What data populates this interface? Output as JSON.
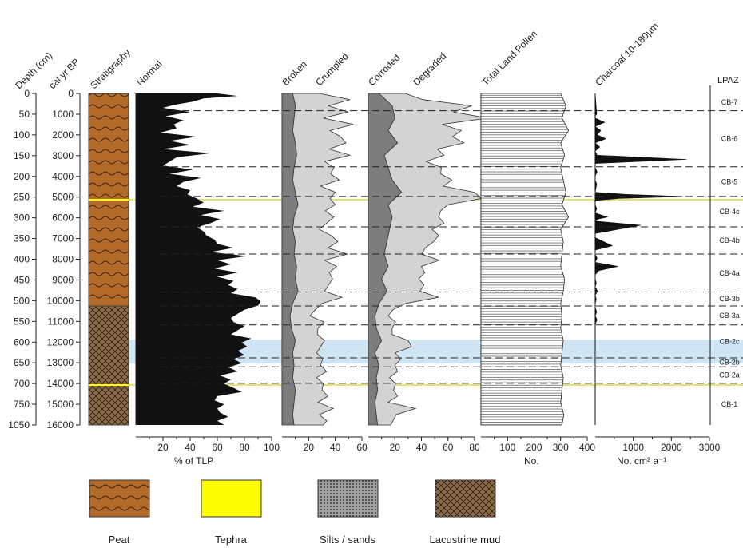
{
  "chart_data": {
    "type": "area",
    "headers": {
      "depth": "Depth (cm)",
      "age": "cal yr BP",
      "strat": "Stratigraphy",
      "normal": "Normal",
      "broken": "Broken",
      "crumpled": "Crumpled",
      "corroded": "Corroded",
      "degraded": "Degraded",
      "tlp": "Total Land Pollen",
      "charcoal": "Charcoal 10-180µm",
      "lpaz": "LPAZ"
    },
    "axis_labels": {
      "normal": "% of TLP",
      "tlp": "No.",
      "charcoal": "No. cm² a⁻¹"
    },
    "depth_ticks": [
      0,
      50,
      100,
      150,
      200,
      250,
      300,
      350,
      400,
      450,
      500,
      550,
      600,
      650,
      700,
      750,
      1050
    ],
    "age_ticks": [
      0,
      1000,
      2000,
      3000,
      4000,
      5000,
      6000,
      7000,
      8000,
      9000,
      10000,
      11000,
      12000,
      13000,
      14000,
      15000,
      16000
    ],
    "x_ticks": {
      "normal": [
        20,
        40,
        60,
        80,
        100
      ],
      "broken_crumpled": [
        20,
        40,
        60
      ],
      "corroded_degraded": [
        20,
        40,
        60,
        80
      ],
      "tlp": [
        100,
        200,
        300,
        400
      ],
      "charcoal": [
        1000,
        2000,
        3000
      ]
    },
    "series": [
      {
        "name": "Normal",
        "x_max": 100,
        "depth": [
          0,
          6,
          12,
          20,
          28,
          35,
          45,
          55,
          65,
          75,
          85,
          95,
          105,
          115,
          125,
          135,
          145,
          155,
          165,
          175,
          185,
          195,
          205,
          215,
          225,
          235,
          245,
          255,
          265,
          275,
          285,
          295,
          305,
          315,
          325,
          335,
          345,
          355,
          365,
          375,
          385,
          395,
          405,
          415,
          425,
          435,
          445,
          455,
          465,
          475,
          485,
          495,
          505,
          515,
          525,
          535,
          545,
          555,
          565,
          575,
          585,
          595,
          605,
          615,
          625,
          635,
          645,
          655,
          665,
          675,
          685,
          695,
          705,
          715,
          725,
          735,
          745,
          755,
          765,
          775,
          785,
          795,
          805
        ],
        "values": [
          60,
          75,
          50,
          42,
          28,
          20,
          40,
          22,
          35,
          28,
          30,
          18,
          45,
          25,
          40,
          20,
          55,
          30,
          25,
          20,
          42,
          25,
          48,
          35,
          30,
          40,
          38,
          45,
          50,
          42,
          65,
          48,
          62,
          55,
          45,
          50,
          52,
          58,
          60,
          72,
          55,
          82,
          60,
          70,
          58,
          75,
          60,
          72,
          68,
          75,
          70,
          88,
          92,
          90,
          80,
          75,
          70,
          72,
          80,
          75,
          70,
          85,
          78,
          82,
          75,
          80,
          72,
          78,
          68,
          75,
          62,
          70,
          65,
          72,
          78,
          60,
          58,
          65,
          60,
          62,
          68,
          60,
          65
        ]
      },
      {
        "name": "Broken",
        "x_max": 60,
        "depth": [
          0,
          30,
          60,
          90,
          120,
          150,
          180,
          210,
          240,
          270,
          300,
          330,
          360,
          390,
          420,
          450,
          480,
          510,
          540,
          570,
          600,
          630,
          660,
          690,
          720,
          750,
          780,
          805
        ],
        "values": [
          8,
          10,
          9,
          8,
          10,
          11,
          9,
          8,
          10,
          12,
          9,
          8,
          10,
          9,
          11,
          10,
          12,
          8,
          6,
          7,
          10,
          8,
          9,
          8,
          10,
          9,
          8,
          9
        ]
      },
      {
        "name": "Crumpled",
        "x_max": 60,
        "depth": [
          0,
          15,
          30,
          45,
          60,
          75,
          90,
          105,
          120,
          135,
          150,
          165,
          180,
          195,
          210,
          225,
          240,
          255,
          270,
          285,
          300,
          315,
          330,
          345,
          360,
          375,
          390,
          405,
          420,
          435,
          450,
          465,
          480,
          495,
          510,
          525,
          540,
          555,
          570,
          585,
          600,
          615,
          630,
          645,
          660,
          675,
          690,
          705,
          720,
          735,
          750,
          765,
          780,
          795,
          805
        ],
        "values": [
          20,
          42,
          25,
          40,
          22,
          45,
          28,
          35,
          38,
          25,
          40,
          22,
          30,
          28,
          35,
          20,
          30,
          25,
          28,
          22,
          30,
          25,
          20,
          28,
          32,
          25,
          40,
          22,
          30,
          25,
          28,
          24,
          20,
          35,
          22,
          18,
          15,
          25,
          20,
          18,
          22,
          20,
          18,
          22,
          20,
          25,
          18,
          22,
          20,
          25,
          18,
          30,
          20,
          25,
          22
        ]
      },
      {
        "name": "Corroded",
        "x_max": 80,
        "depth": [
          0,
          30,
          60,
          90,
          120,
          150,
          180,
          210,
          240,
          270,
          300,
          330,
          360,
          390,
          420,
          450,
          480,
          510,
          540,
          570,
          600,
          630,
          660,
          690,
          720,
          750,
          780,
          805
        ],
        "values": [
          8,
          18,
          20,
          15,
          22,
          12,
          15,
          18,
          25,
          15,
          18,
          16,
          14,
          12,
          15,
          10,
          14,
          8,
          5,
          6,
          10,
          5,
          8,
          6,
          7,
          5,
          6,
          7
        ]
      },
      {
        "name": "Degraded",
        "x_max": 80,
        "depth": [
          0,
          15,
          30,
          45,
          60,
          75,
          90,
          105,
          120,
          135,
          150,
          165,
          180,
          195,
          210,
          225,
          240,
          255,
          270,
          285,
          300,
          315,
          330,
          345,
          360,
          375,
          390,
          405,
          420,
          435,
          450,
          465,
          480,
          495,
          510,
          525,
          540,
          555,
          570,
          585,
          600,
          615,
          630,
          645,
          660,
          675,
          690,
          705,
          720,
          735,
          750,
          765,
          780,
          795,
          805
        ],
        "values": [
          20,
          28,
          60,
          45,
          70,
          38,
          55,
          45,
          50,
          35,
          45,
          30,
          40,
          38,
          45,
          35,
          55,
          65,
          45,
          38,
          35,
          40,
          32,
          38,
          35,
          30,
          28,
          40,
          25,
          30,
          28,
          30,
          25,
          42,
          20,
          12,
          10,
          15,
          12,
          10,
          20,
          25,
          15,
          18,
          12,
          15,
          10,
          14,
          12,
          16,
          10,
          30,
          15,
          12,
          10
        ]
      },
      {
        "name": "Total Land Pollen",
        "x_max": 400,
        "depth": [
          0,
          30,
          60,
          90,
          120,
          150,
          180,
          210,
          240,
          270,
          300,
          330,
          360,
          390,
          420,
          450,
          480,
          510,
          540,
          570,
          600,
          630,
          660,
          690,
          720,
          750,
          780,
          805
        ],
        "values": [
          300,
          320,
          305,
          330,
          300,
          315,
          300,
          310,
          320,
          305,
          330,
          300,
          310,
          305,
          300,
          315,
          310,
          300,
          305,
          300,
          310,
          305,
          300,
          310,
          305,
          300,
          312,
          305
        ]
      },
      {
        "name": "Charcoal 10-180µm",
        "x_max": 3000,
        "depth": [
          0,
          50,
          55,
          60,
          70,
          80,
          90,
          100,
          110,
          120,
          130,
          140,
          150,
          160,
          170,
          180,
          190,
          200,
          210,
          220,
          240,
          245,
          250,
          255,
          260,
          270,
          280,
          290,
          300,
          305,
          310,
          320,
          330,
          340,
          350,
          370,
          380,
          390,
          400,
          410,
          420,
          430,
          440,
          450,
          460,
          470,
          480,
          490,
          500,
          510,
          520,
          530,
          540,
          550,
          560,
          805
        ],
        "values": [
          0,
          40,
          0,
          0,
          250,
          0,
          150,
          50,
          280,
          0,
          120,
          0,
          50,
          2400,
          0,
          0,
          50,
          0,
          0,
          40,
          0,
          800,
          2300,
          600,
          0,
          0,
          40,
          0,
          320,
          80,
          0,
          1200,
          600,
          0,
          0,
          450,
          0,
          0,
          50,
          0,
          600,
          100,
          0,
          0,
          30,
          0,
          60,
          0,
          30,
          0,
          0,
          40,
          0,
          50,
          0,
          0
        ]
      }
    ],
    "zones": [
      {
        "name": "CB-7",
        "top": 0,
        "bottom": 42
      },
      {
        "name": "CB-6",
        "top": 42,
        "bottom": 178
      },
      {
        "name": "CB-5",
        "top": 178,
        "bottom": 250
      },
      {
        "name": "CB-4c",
        "top": 250,
        "bottom": 324
      },
      {
        "name": "CB-4b",
        "top": 324,
        "bottom": 390
      },
      {
        "name": "CB-4a",
        "top": 390,
        "bottom": 482
      },
      {
        "name": "CB-3b",
        "top": 482,
        "bottom": 516
      },
      {
        "name": "CB-3a",
        "top": 516,
        "bottom": 562
      },
      {
        "name": "CB-2c",
        "top": 562,
        "bottom": 642
      },
      {
        "name": "CB-2b",
        "top": 642,
        "bottom": 664
      },
      {
        "name": "CB-2a",
        "top": 664,
        "bottom": 704
      },
      {
        "name": "CB-1",
        "top": 704,
        "bottom": 805
      }
    ],
    "tephra_depths": [
      258,
      708
    ],
    "silt_band": [
      598,
      656
    ],
    "legend": [
      {
        "name": "Peat",
        "pattern": "peat"
      },
      {
        "name": "Tephra",
        "pattern": "tephra"
      },
      {
        "name": "Silts / sands",
        "pattern": "silt"
      },
      {
        "name": "Lacustrine mud",
        "pattern": "mud"
      }
    ],
    "colors": {
      "normal": "#111111",
      "broken": "#7d7d7d",
      "crumpled": "#d3d3d3",
      "corroded": "#7d7d7d",
      "degraded": "#d3d3d3",
      "peat": "#b46a28",
      "tephra": "#ffff00",
      "mud": "#8a6b4a",
      "silt_band": "#cfe5f3",
      "tephra_line": "#e7e26a"
    }
  }
}
